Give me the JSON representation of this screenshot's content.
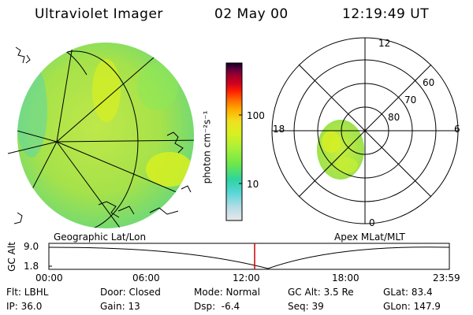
{
  "header": {
    "instrument": "Ultraviolet Imager",
    "date": "02 May 00",
    "time": "12:19:49 UT"
  },
  "left_image": {
    "label": "Geographic Lat/Lon"
  },
  "colorbar": {
    "ticks": [
      "100",
      "10"
    ],
    "unit_label": "photon cm⁻²s⁻¹",
    "colors": [
      "#e8e8e8",
      "#b8dde6",
      "#55d6d6",
      "#2ed4a0",
      "#6ee84a",
      "#a8f03a",
      "#d8f020",
      "#f0e020",
      "#ffb000",
      "#ff7000",
      "#ff2000",
      "#d00020",
      "#a0002a",
      "#600040",
      "#300050",
      "#100020"
    ]
  },
  "right_image": {
    "label": "Apex MLat/MLT",
    "lat_labels": [
      "80",
      "70",
      "60"
    ],
    "mlt_labels": {
      "top": "12",
      "right": "6",
      "bottom": "0",
      "left": "18"
    }
  },
  "altitude_plot": {
    "ylabel": "GC Alt",
    "y_ticks": [
      "9.0",
      "1.8"
    ],
    "x_ticks": [
      "00:00",
      "06:00",
      "12:00",
      "18:00",
      "23:59"
    ],
    "marker_color": "#cc0000"
  },
  "status": {
    "flt": "Flt: LBHL",
    "door": "Door: Closed",
    "mode": "Mode: Normal",
    "gc_alt": "GC Alt: 3.5 Re",
    "glat": "GLat: 83.4",
    "ip": "IP: 36.0",
    "gain": "Gain: 13",
    "dsp": "Dsp:  -6.4",
    "seq": "Seq: 39",
    "glon": "GLon: 147.9"
  }
}
